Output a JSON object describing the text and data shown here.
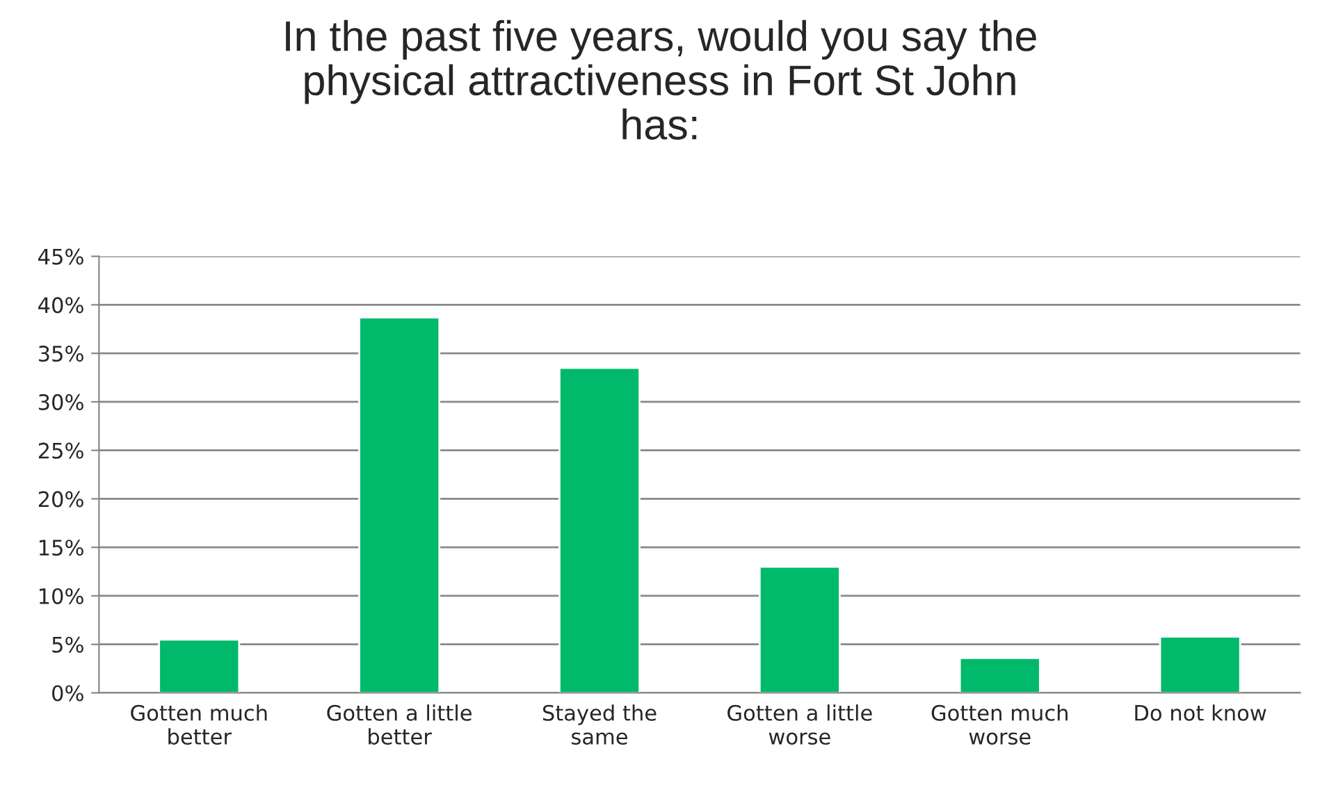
{
  "chart_data": {
    "type": "bar",
    "title": "In the past five years, would you say the\nphysical attractiveness in Fort St John\nhas:",
    "categories": [
      "Gotten much\nbetter",
      "Gotten a little\nbetter",
      "Stayed the\nsame",
      "Gotten a little\nworse",
      "Gotten much\nworse",
      "Do not know"
    ],
    "values": [
      5.5,
      38.7,
      33.5,
      13.0,
      3.6,
      5.8
    ],
    "color": "#00b96b",
    "ylim": [
      0,
      45
    ],
    "yticks": [
      {
        "value": 0,
        "label": "0%"
      },
      {
        "value": 5,
        "label": "5%"
      },
      {
        "value": 10,
        "label": "10%"
      },
      {
        "value": 15,
        "label": "15%"
      },
      {
        "value": 20,
        "label": "20%"
      },
      {
        "value": 25,
        "label": "25%"
      },
      {
        "value": 30,
        "label": "30%"
      },
      {
        "value": 35,
        "label": "35%"
      },
      {
        "value": 40,
        "label": "40%"
      },
      {
        "value": 45,
        "label": "45%"
      }
    ],
    "grid": "y",
    "legend": false
  }
}
